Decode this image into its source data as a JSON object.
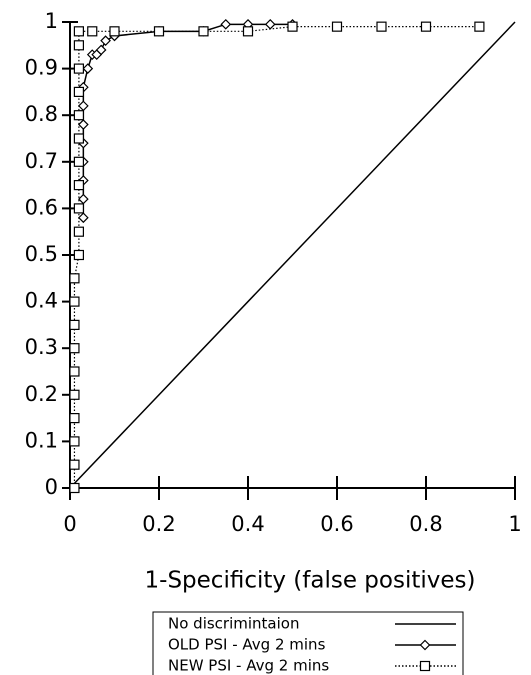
{
  "chart_data": {
    "type": "line",
    "xlabel": "1-Specificity (false positives)",
    "xlim": [
      0,
      1
    ],
    "xticks": [
      0,
      0.2,
      0.4,
      0.6,
      0.8,
      1
    ],
    "ylim": [
      0,
      1
    ],
    "yticks": [
      0,
      0.1,
      0.2,
      0.3,
      0.4,
      0.5,
      0.6,
      0.7,
      0.8,
      0.9,
      1
    ],
    "legend": "bottom",
    "series": [
      {
        "name": "No discrimintaion",
        "color": "#000000",
        "marker": "none",
        "dash": "solid",
        "x": [
          0,
          1
        ],
        "values": [
          0,
          1
        ]
      },
      {
        "name": "OLD PSI - Avg 2 mins",
        "color": "#000000",
        "marker": "diamond",
        "dash": "solid",
        "x": [
          0.03,
          0.03,
          0.03,
          0.03,
          0.03,
          0.03,
          0.03,
          0.03,
          0.04,
          0.05,
          0.06,
          0.07,
          0.08,
          0.1,
          0.2,
          0.3,
          0.35,
          0.4,
          0.45,
          0.5
        ],
        "values": [
          0.58,
          0.62,
          0.66,
          0.7,
          0.74,
          0.78,
          0.82,
          0.86,
          0.9,
          0.93,
          0.93,
          0.94,
          0.96,
          0.97,
          0.98,
          0.98,
          0.995,
          0.995,
          0.995,
          0.995
        ]
      },
      {
        "name": "NEW PSI - Avg 2 mins",
        "color": "#000000",
        "marker": "square",
        "dash": "dotted",
        "x": [
          0.01,
          0.01,
          0.01,
          0.01,
          0.01,
          0.01,
          0.01,
          0.01,
          0.01,
          0.01,
          0.02,
          0.02,
          0.02,
          0.02,
          0.02,
          0.02,
          0.02,
          0.02,
          0.02,
          0.02,
          0.02,
          0.05,
          0.1,
          0.2,
          0.3,
          0.4,
          0.5,
          0.6,
          0.7,
          0.8,
          0.92
        ],
        "values": [
          0,
          0.05,
          0.1,
          0.15,
          0.2,
          0.25,
          0.3,
          0.35,
          0.4,
          0.45,
          0.5,
          0.55,
          0.6,
          0.65,
          0.7,
          0.75,
          0.8,
          0.85,
          0.9,
          0.95,
          0.98,
          0.98,
          0.98,
          0.98,
          0.98,
          0.98,
          0.99,
          0.99,
          0.99,
          0.99,
          0.99
        ]
      }
    ]
  }
}
